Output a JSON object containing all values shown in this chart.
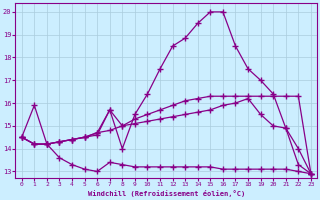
{
  "xlabel": "Windchill (Refroidissement éolien,°C)",
  "background_color": "#cceeff",
  "grid_color": "#aaccdd",
  "line_color": "#880088",
  "xlim": [
    -0.5,
    23.5
  ],
  "ylim": [
    12.7,
    20.4
  ],
  "xticks": [
    0,
    1,
    2,
    3,
    4,
    5,
    6,
    7,
    8,
    9,
    10,
    11,
    12,
    13,
    14,
    15,
    16,
    17,
    18,
    19,
    20,
    21,
    22,
    23
  ],
  "yticks": [
    13,
    14,
    15,
    16,
    17,
    18,
    19,
    20
  ],
  "series": [
    [
      14.5,
      15.9,
      14.2,
      13.6,
      13.3,
      13.1,
      13.0,
      13.4,
      13.3,
      13.2,
      13.2,
      13.2,
      13.2,
      13.2,
      13.2,
      13.2,
      13.1,
      13.1,
      13.1,
      13.1,
      13.1,
      13.1,
      13.0,
      12.9
    ],
    [
      14.5,
      14.2,
      14.2,
      14.3,
      14.4,
      14.5,
      14.6,
      15.7,
      15.0,
      15.3,
      15.5,
      15.7,
      15.9,
      16.1,
      16.2,
      16.3,
      16.3,
      16.3,
      16.3,
      16.3,
      16.3,
      16.3,
      16.3,
      12.9
    ],
    [
      14.5,
      14.2,
      14.2,
      14.3,
      14.4,
      14.5,
      14.7,
      14.8,
      15.0,
      15.1,
      15.2,
      15.3,
      15.4,
      15.5,
      15.6,
      15.7,
      15.9,
      16.0,
      16.2,
      15.5,
      15.0,
      14.9,
      14.0,
      12.9
    ],
    [
      14.5,
      14.2,
      14.2,
      14.3,
      14.4,
      14.5,
      14.7,
      15.7,
      14.0,
      15.5,
      16.4,
      17.5,
      18.5,
      18.85,
      19.5,
      20.0,
      20.0,
      18.5,
      17.5,
      17.0,
      16.4,
      14.9,
      13.3,
      12.9
    ]
  ]
}
